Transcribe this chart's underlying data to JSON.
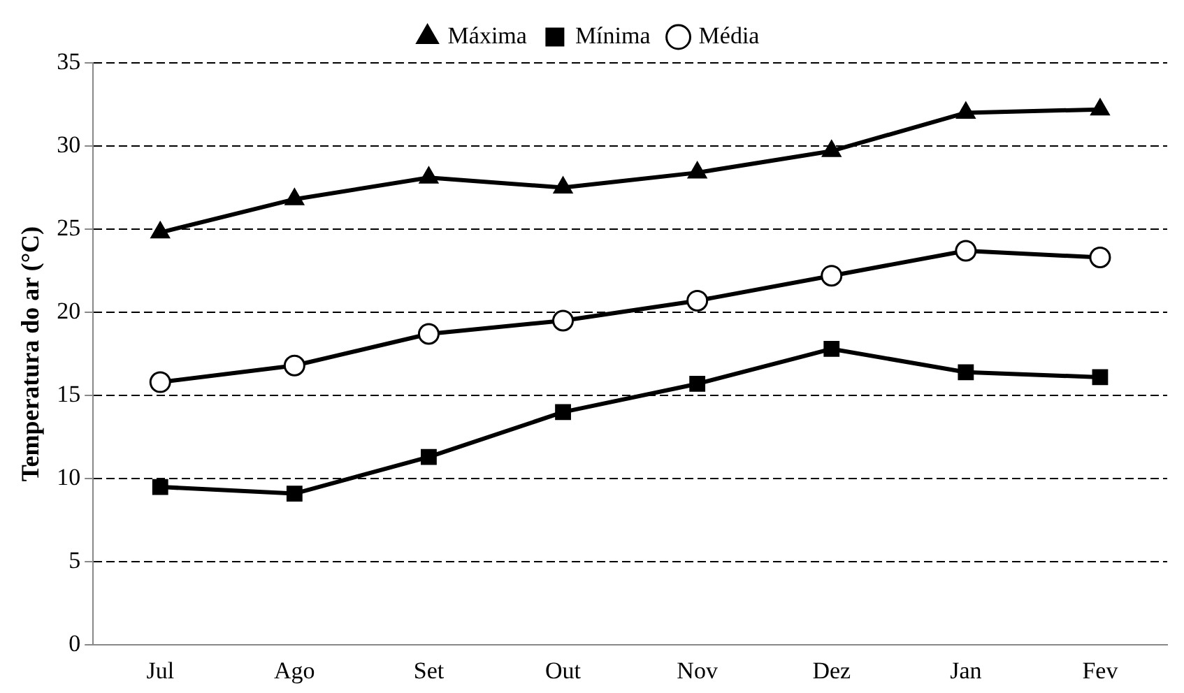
{
  "chart_data": {
    "type": "line",
    "ylabel": "Temperatura do ar (°C)",
    "categories": [
      "Jul",
      "Ago",
      "Set",
      "Out",
      "Nov",
      "Dez",
      "Jan",
      "Fev"
    ],
    "series": [
      {
        "name": "Máxima",
        "color": "#000000",
        "marker": "triangle",
        "values": [
          24.8,
          26.8,
          28.1,
          27.5,
          28.4,
          29.7,
          32.0,
          32.2
        ]
      },
      {
        "name": "Mínima",
        "color": "#000000",
        "marker": "square",
        "values": [
          9.5,
          9.1,
          11.3,
          14.0,
          15.7,
          17.8,
          16.4,
          16.1
        ]
      },
      {
        "name": "Média",
        "color": "#000000",
        "marker": "circle",
        "values": [
          15.8,
          16.8,
          18.7,
          19.5,
          20.7,
          22.2,
          23.7,
          23.3
        ]
      }
    ],
    "ylim": [
      0,
      35
    ],
    "yticks": [
      0,
      5,
      10,
      15,
      20,
      25,
      30,
      35
    ],
    "grid": "y",
    "legend": "top",
    "line_style": "solid"
  }
}
